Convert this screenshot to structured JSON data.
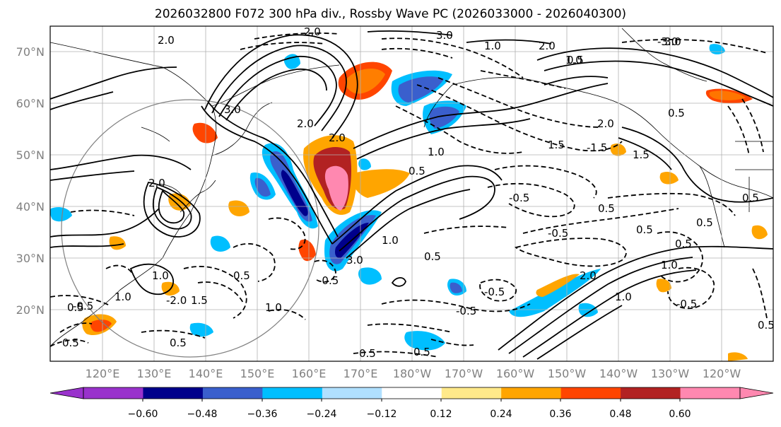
{
  "title": "2026032800 F072 300 hPa div., Rossby Wave PC (2026033000 - 2026040300)",
  "lat_labels": [
    "70°N",
    "60°N",
    "50°N",
    "40°N",
    "30°N",
    "20°N"
  ],
  "lon_labels": [
    "120°E",
    "130°E",
    "140°E",
    "150°E",
    "160°E",
    "170°E",
    "180°W",
    "170°W",
    "160°W",
    "150°W",
    "140°W",
    "130°W",
    "120°W"
  ],
  "colorbar": {
    "ticks": [
      "−0.60",
      "−0.48",
      "−0.36",
      "−0.24",
      "−0.12",
      "0.12",
      "0.24",
      "0.36",
      "0.48",
      "0.60"
    ],
    "colors": [
      "#9932cc",
      "#00008b",
      "#3a5fcd",
      "#00bfff",
      "#b0e0ff",
      "#ffffff",
      "#ffe98a",
      "#ffa500",
      "#ff4500",
      "#b22222",
      "#ff88b0"
    ]
  },
  "contour_labels": [
    "2.0",
    "3.0",
    "3.0",
    "2.0",
    "1.0",
    "2.0",
    "3.0",
    "2.0",
    "2.0",
    "1.0",
    "3.0",
    "1.0",
    "1.0",
    "2.0",
    "1.0",
    "0.5",
    "0.5",
    "1.0",
    "1.5",
    "1.5",
    "0.5",
    "0.5",
    "0.5",
    "0.5",
    "0.5",
    "0.5",
    "0.5",
    "0.5",
    "0.5",
    "0.5",
    "0.5",
    "1.0",
    "1.5",
    "2.0",
    "2.0",
    "1.0",
    "1.0",
    "0.5",
    "0.5",
    "0.5",
    "-0.5",
    "-0.5",
    "-0.5",
    "-0.5",
    "-0.5",
    "-0.5",
    "-0.5",
    "-1.5",
    "-2.0",
    "-3.0"
  ]
}
